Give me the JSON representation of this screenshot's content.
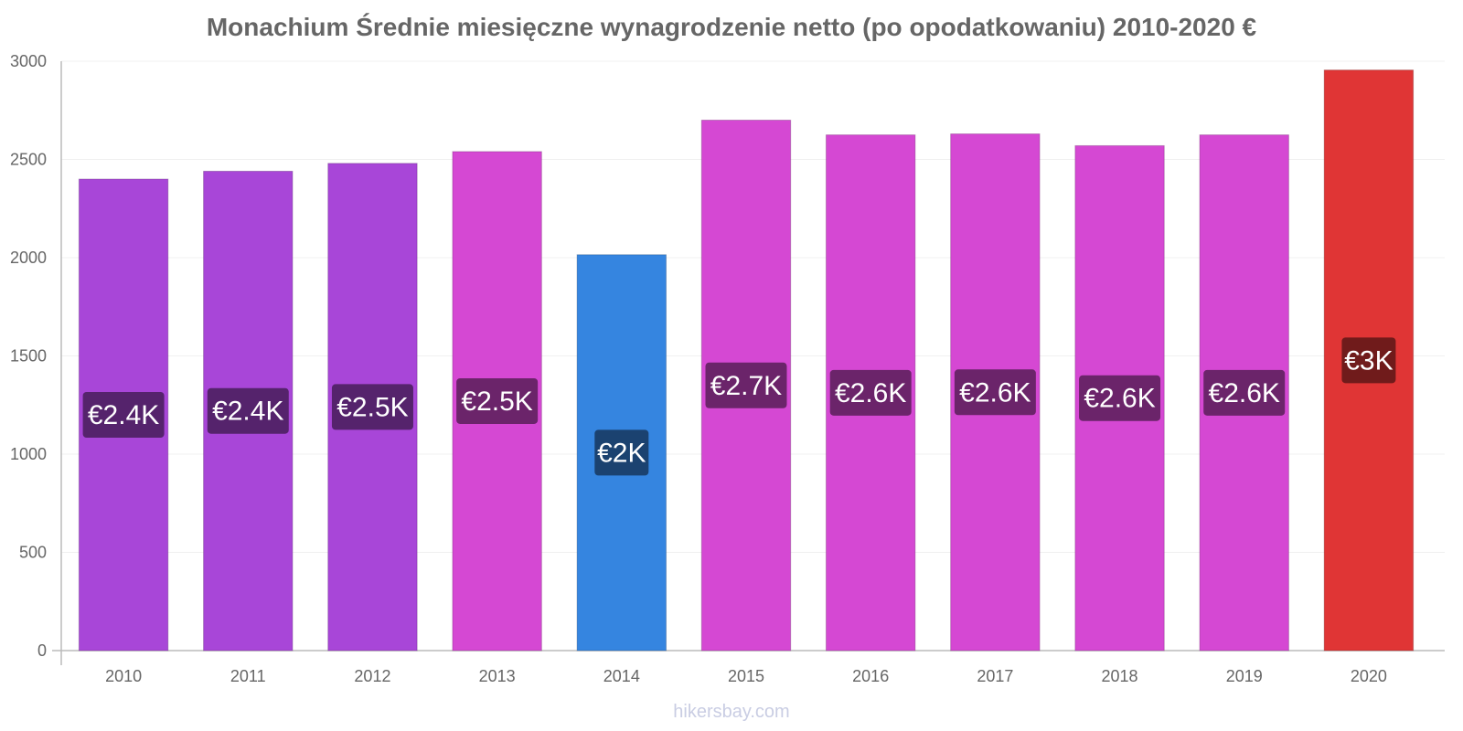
{
  "chart_data": {
    "type": "bar",
    "title": "Monachium Średnie miesięczne wynagrodzenie netto (po opodatkowaniu) 2010-2020 €",
    "categories": [
      "2010",
      "2011",
      "2012",
      "2013",
      "2014",
      "2015",
      "2016",
      "2017",
      "2018",
      "2019",
      "2020"
    ],
    "values": [
      2400,
      2440,
      2480,
      2540,
      2015,
      2700,
      2625,
      2630,
      2570,
      2625,
      2955
    ],
    "data_labels": [
      "€2.4K",
      "€2.4K",
      "€2.5K",
      "€2.5K",
      "€2K",
      "€2.7K",
      "€2.6K",
      "€2.6K",
      "€2.6K",
      "€2.6K",
      "€3K"
    ],
    "bar_colors": [
      "#a846d8",
      "#a846d8",
      "#a846d8",
      "#d548d3",
      "#3585e0",
      "#d548d3",
      "#d548d3",
      "#d548d3",
      "#d548d3",
      "#d548d3",
      "#e03535"
    ],
    "label_bg_colors": [
      "#55236c",
      "#55236c",
      "#55236c",
      "#6b246a",
      "#1b4270",
      "#6b246a",
      "#6b246a",
      "#6b246a",
      "#6b246a",
      "#6b246a",
      "#701b1b"
    ],
    "ylim": [
      0,
      3000
    ],
    "yticks": [
      0,
      500,
      1000,
      1500,
      2000,
      2500,
      3000
    ],
    "xlabel": "",
    "ylabel": "",
    "grid": true,
    "legend": "none"
  },
  "watermark": "hikersbay.com"
}
